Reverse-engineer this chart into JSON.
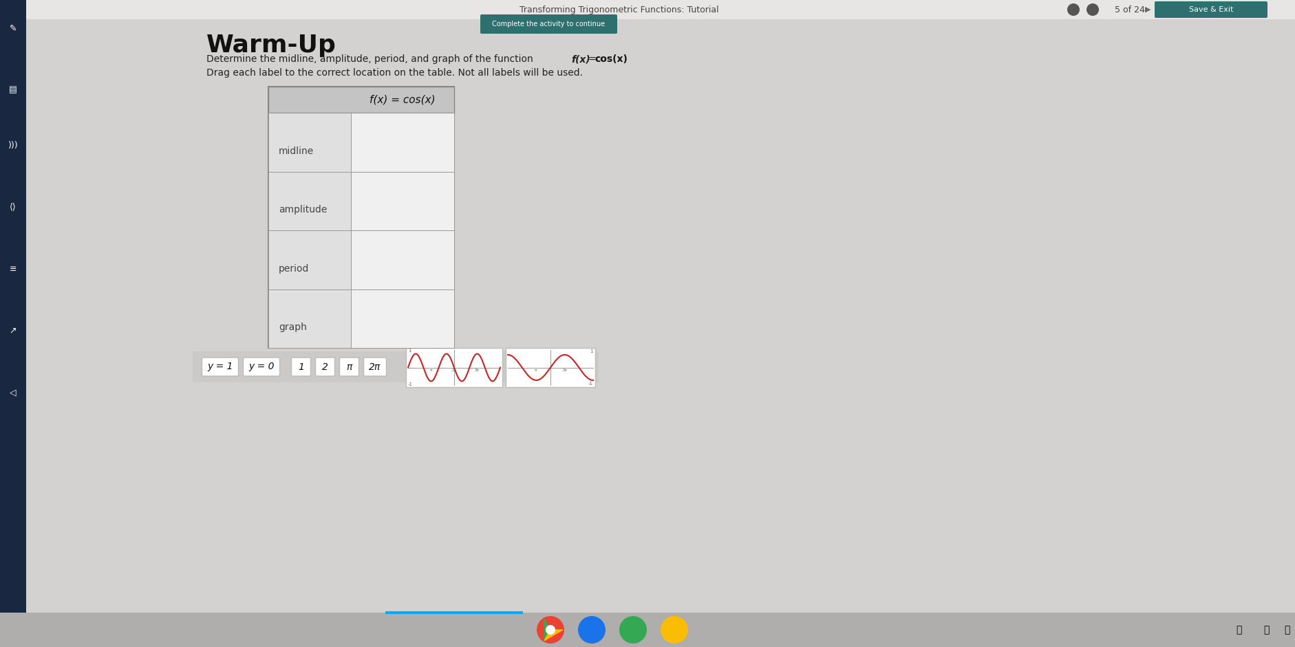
{
  "title": "Warm-Up",
  "complete_btn_text": "Complete the activity to continue",
  "instruction1": "Determine the midline, amplitude, period, and graph of the function ",
  "instruction1_bold": "f(x)",
  "instruction1_eq": " = ",
  "instruction1_bold2": "cos(x)",
  "instruction2": "Drag each label to the correct location on the table. Not all labels will be used.",
  "nav_title": "Transforming Trigonometric Functions: Tutorial",
  "nav_text": "5 of 24",
  "table_header": "f(x) = cos(x)",
  "table_rows": [
    "midline",
    "amplitude",
    "period",
    "graph"
  ],
  "drag_labels": [
    "y = 1",
    "y = 0",
    "1",
    "2",
    "π",
    "2π"
  ],
  "bg_color": "#d0cece",
  "content_bg": "#d8d6d4",
  "sidebar_color": "#1a2740",
  "nav_bar_color": "#e8e6e4",
  "table_outer_bg": "#c8c8c8",
  "table_header_bg": "#c0c0c0",
  "table_left_col_bg": "#d4d4d4",
  "table_right_col_bg": "#e8e8e8",
  "table_border_color": "#999999",
  "drag_area_bg": "#e0dede",
  "label_box_bg": "#ffffff",
  "label_box_border": "#cccccc",
  "nav_teal_btn": "#2e7070",
  "graph_line_color": "#cc2222",
  "graph_bg": "#ffffff",
  "graph_border": "#bbbbbb"
}
